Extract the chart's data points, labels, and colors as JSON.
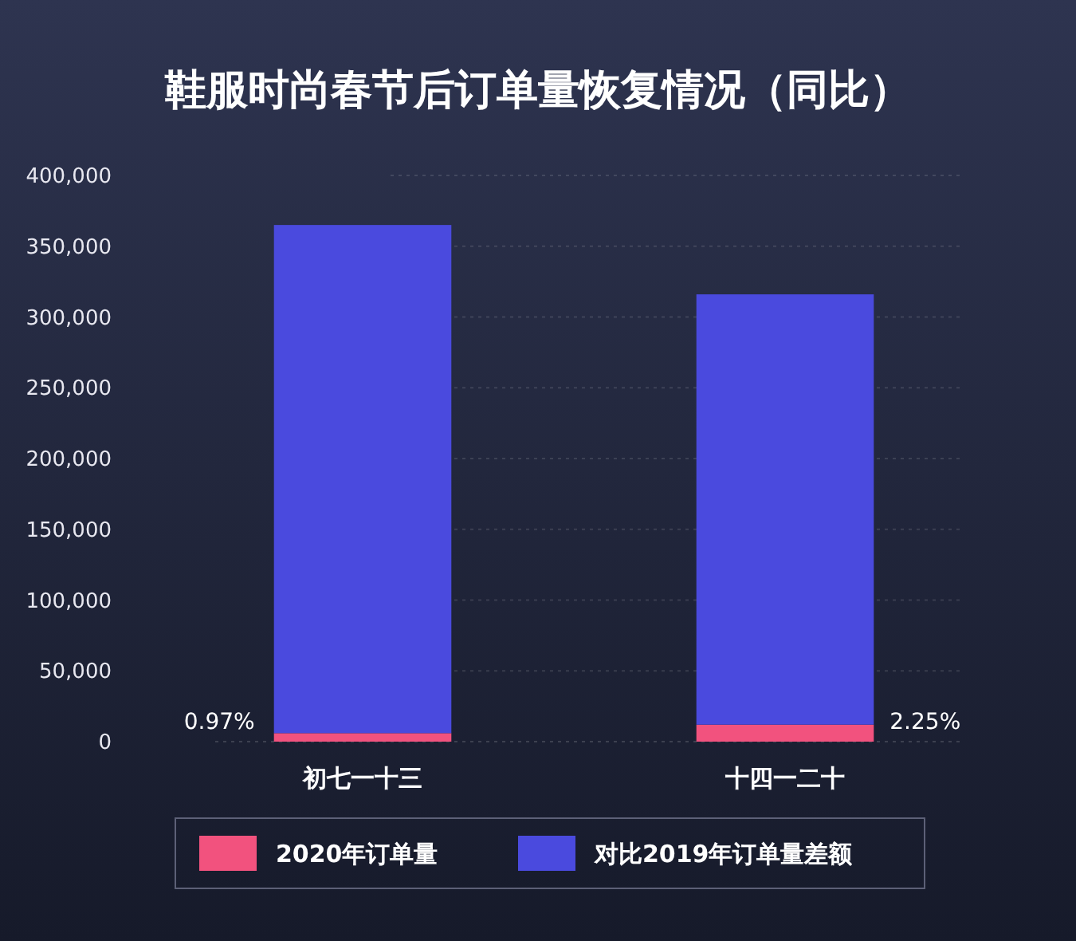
{
  "chart_data": {
    "type": "bar",
    "title": "鞋服时尚春节后订单量恢复情况（同比）",
    "categories": [
      "初七一十三",
      "十四一二十"
    ],
    "stacked": true,
    "series": [
      {
        "name": "2020年订单量",
        "color": "#f2527e",
        "values": [
          6000,
          12000
        ]
      },
      {
        "name": "对比2019年订单量差额",
        "color": "#4a4ade",
        "values": [
          359000,
          304000
        ]
      }
    ],
    "ylim": [
      0,
      400000
    ],
    "yticks": [
      {
        "value": 0,
        "label": "0"
      },
      {
        "value": 50000,
        "label": "50,000"
      },
      {
        "value": 100000,
        "label": "100,000"
      },
      {
        "value": 150000,
        "label": "150,000"
      },
      {
        "value": 200000,
        "label": "200,000"
      },
      {
        "value": 250000,
        "label": "250,000"
      },
      {
        "value": 300000,
        "label": "300,000"
      },
      {
        "value": 350000,
        "label": "350,000"
      },
      {
        "value": 400000,
        "label": "400,000"
      }
    ],
    "grid": "y",
    "legend": "bottom",
    "annotations": [
      "0.97%",
      "2.25%"
    ]
  }
}
